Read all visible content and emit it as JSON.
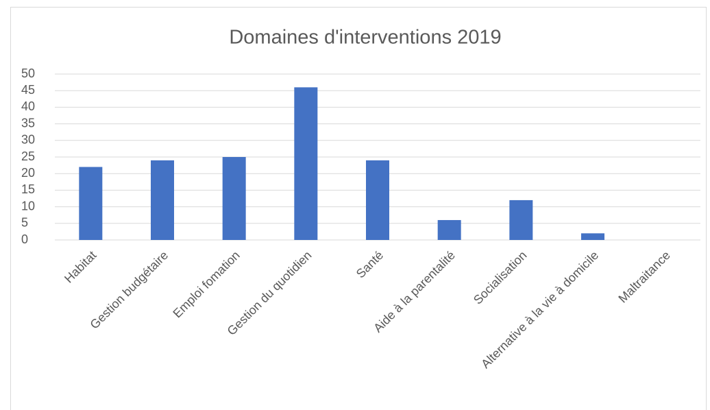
{
  "chart_data": {
    "type": "bar",
    "title": "Domaines d'interventions 2019",
    "categories": [
      "Habitat",
      "Gestion budgétaire",
      "Emploi fomation",
      "Gestion du quotidien",
      "Santé",
      "Aide à la parentalité",
      "Socialisation",
      "Alternative à la vie à domicile",
      "Maltraitance"
    ],
    "values": [
      22,
      24,
      25,
      46,
      24,
      6,
      12,
      2,
      0
    ],
    "color": "#4472c4",
    "ylim": [
      0,
      50
    ],
    "yticks": [
      0,
      5,
      10,
      15,
      20,
      25,
      30,
      35,
      40,
      45,
      50
    ],
    "grid": true
  }
}
